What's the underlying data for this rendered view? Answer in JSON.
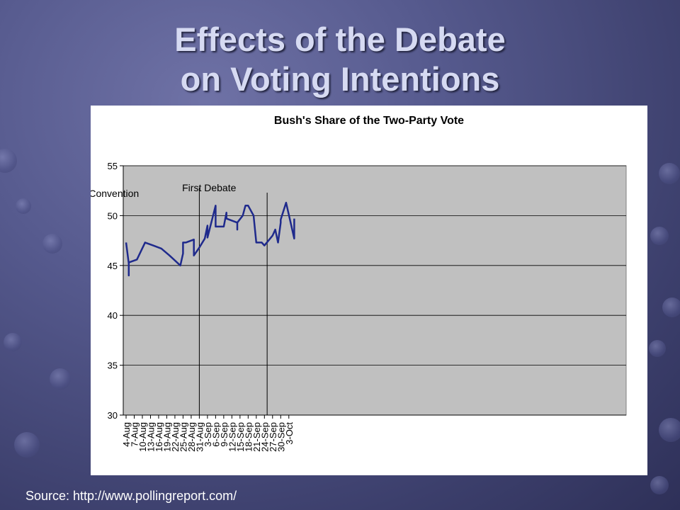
{
  "slide": {
    "title_line1": "Effects of the Debate",
    "title_line2": "on Voting Intentions",
    "source": "Source: http://www.pollingreport.com/"
  },
  "colors": {
    "series": "#1f2a8c",
    "plot_area": "#c0c0c0",
    "gridline": "#000000"
  },
  "chart_data": {
    "type": "line",
    "title": "Bush's Share of the Two-Party Vote",
    "xlabel": "",
    "ylabel": "",
    "ylim": [
      30,
      55
    ],
    "yticks": [
      30,
      35,
      40,
      45,
      50,
      55
    ],
    "grid": true,
    "xticks": [
      "4-Aug",
      "7-Aug",
      "10-Aug",
      "13-Aug",
      "16-Aug",
      "19-Aug",
      "22-Aug",
      "25-Aug",
      "28-Aug",
      "31-Aug",
      "3-Sep",
      "6-Sep",
      "9-Sep",
      "12-Sep",
      "15-Sep",
      "18-Sep",
      "21-Sep",
      "24-Sep",
      "27-Sep",
      "30-Sep",
      "3-Oct"
    ],
    "annotations": [
      {
        "text": "Republican Convention",
        "date": "31-Aug"
      },
      {
        "text": "First Debate",
        "date": "25-Sep"
      }
    ],
    "series": [
      {
        "values": [
          [
            "4-Aug",
            47.3
          ],
          [
            "5-Aug",
            45.2
          ],
          [
            "5-Aug",
            44.0
          ],
          [
            "5-Aug",
            45.3
          ],
          [
            "8-Aug",
            45.6
          ],
          [
            "11-Aug",
            47.3
          ],
          [
            "14-Aug",
            47.0
          ],
          [
            "17-Aug",
            46.7
          ],
          [
            "20-Aug",
            46.0
          ],
          [
            "24-Aug",
            45.0
          ],
          [
            "25-Aug",
            46.2
          ],
          [
            "25-Aug",
            47.3
          ],
          [
            "26-Aug",
            47.3
          ],
          [
            "29-Aug",
            47.6
          ],
          [
            "29-Aug",
            46.0
          ],
          [
            "31-Aug",
            46.8
          ],
          [
            "2-Sep",
            47.7
          ],
          [
            "3-Sep",
            49.0
          ],
          [
            "3-Sep",
            47.8
          ],
          [
            "6-Sep",
            51.0
          ],
          [
            "6-Sep",
            48.9
          ],
          [
            "9-Sep",
            48.9
          ],
          [
            "10-Sep",
            50.3
          ],
          [
            "10-Sep",
            49.7
          ],
          [
            "14-Sep",
            49.3
          ],
          [
            "14-Sep",
            48.6
          ],
          [
            "14-Sep",
            49.3
          ],
          [
            "16-Sep",
            50.0
          ],
          [
            "17-Sep",
            51.0
          ],
          [
            "18-Sep",
            51.0
          ],
          [
            "20-Sep",
            50.0
          ],
          [
            "21-Sep",
            47.3
          ],
          [
            "23-Sep",
            47.3
          ],
          [
            "24-Sep",
            47.0
          ],
          [
            "27-Sep",
            48.0
          ],
          [
            "28-Sep",
            48.6
          ],
          [
            "29-Sep",
            47.3
          ],
          [
            "30-Sep",
            49.3
          ],
          [
            "30-Sep",
            49.6
          ],
          [
            "2-Oct",
            51.3
          ],
          [
            "5-Oct",
            47.7
          ],
          [
            "5-Oct",
            49.7
          ]
        ]
      }
    ]
  }
}
